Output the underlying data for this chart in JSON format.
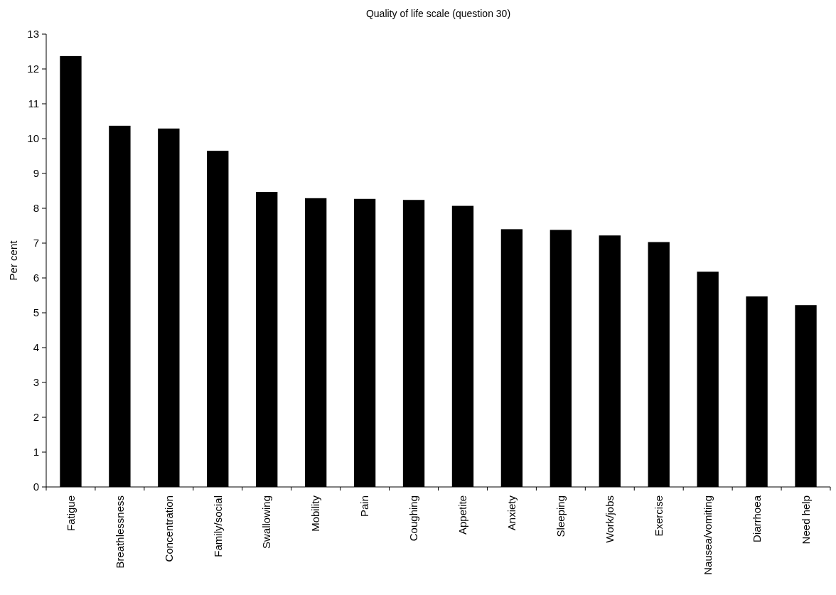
{
  "chart_data": {
    "type": "bar",
    "title": "Quality of life scale (question 30)",
    "ylabel": "Per cent",
    "categories": [
      "Fatigue",
      "Breathlessness",
      "Concentration",
      "Family/social",
      "Swallowing",
      "Mobility",
      "Pain",
      "Coughing",
      "Appetite",
      "Anxiety",
      "Sleeping",
      "Work/jobs",
      "Exercise",
      "Nausea/vomiting",
      "Diarrhoea",
      "Need help"
    ],
    "values": [
      12.37,
      10.37,
      10.29,
      9.65,
      8.47,
      8.29,
      8.27,
      8.24,
      8.07,
      7.4,
      7.38,
      7.22,
      7.03,
      6.18,
      5.47,
      5.22
    ],
    "color": "#000000",
    "ylim": [
      0,
      13
    ],
    "yticks": [
      0,
      1,
      2,
      3,
      4,
      5,
      6,
      7,
      8,
      9,
      10,
      11,
      12,
      13
    ],
    "grid": false
  }
}
